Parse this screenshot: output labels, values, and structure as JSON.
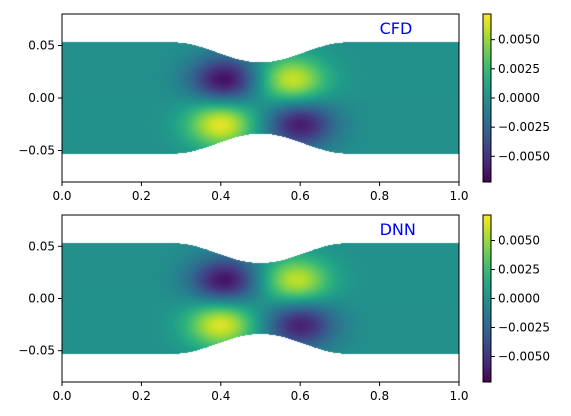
{
  "chart_data": [
    {
      "type": "heatmap",
      "label": "CFD",
      "label_color": "#0000ff",
      "label_position": "top-right",
      "xlim": [
        0.0,
        1.0
      ],
      "ylim": [
        -0.08,
        0.08
      ],
      "x_ticks": [
        "0.0",
        "0.2",
        "0.4",
        "0.6",
        "0.8",
        "1.0"
      ],
      "y_ticks": [
        "0.05",
        "0.00",
        "−0.05"
      ],
      "y_tick_values": [
        0.05,
        0.0,
        -0.05
      ],
      "channel": {
        "half_width": 0.053,
        "throat_half_width": 0.034,
        "throat_x": 0.5,
        "constriction_span": [
          0.28,
          0.72
        ]
      },
      "field_features": [
        {
          "x": 0.41,
          "y": 0.017,
          "value": -0.0068
        },
        {
          "x": 0.58,
          "y": 0.017,
          "value": 0.0062
        },
        {
          "x": 0.4,
          "y": -0.025,
          "value": 0.0068
        },
        {
          "x": 0.6,
          "y": -0.025,
          "value": -0.0062
        }
      ],
      "colorbar": {
        "colormap": "viridis",
        "vmin": -0.0072,
        "vmax": 0.0072,
        "ticks": [
          "0.0050",
          "0.0025",
          "0.0000",
          "−0.0025",
          "−0.0050"
        ],
        "tick_values": [
          0.005,
          0.0025,
          0.0,
          -0.0025,
          -0.005
        ]
      }
    },
    {
      "type": "heatmap",
      "label": "DNN",
      "label_color": "#0000ff",
      "label_position": "top-right",
      "xlim": [
        0.0,
        1.0
      ],
      "ylim": [
        -0.08,
        0.08
      ],
      "x_ticks": [
        "0.0",
        "0.2",
        "0.4",
        "0.6",
        "0.8",
        "1.0"
      ],
      "y_ticks": [
        "0.05",
        "0.00",
        "−0.05"
      ],
      "y_tick_values": [
        0.05,
        0.0,
        -0.05
      ],
      "channel": {
        "half_width": 0.053,
        "throat_half_width": 0.034,
        "throat_x": 0.5,
        "constriction_span": [
          0.28,
          0.72
        ]
      },
      "field_features": [
        {
          "x": 0.41,
          "y": 0.017,
          "value": -0.0066
        },
        {
          "x": 0.59,
          "y": 0.017,
          "value": 0.006
        },
        {
          "x": 0.4,
          "y": -0.025,
          "value": 0.0066
        },
        {
          "x": 0.6,
          "y": -0.025,
          "value": -0.006
        }
      ],
      "colorbar": {
        "colormap": "viridis",
        "vmin": -0.0072,
        "vmax": 0.0072,
        "ticks": [
          "0.0050",
          "0.0025",
          "0.0000",
          "−0.0025",
          "−0.0050"
        ],
        "tick_values": [
          0.005,
          0.0025,
          0.0,
          -0.0025,
          -0.005
        ]
      }
    }
  ]
}
